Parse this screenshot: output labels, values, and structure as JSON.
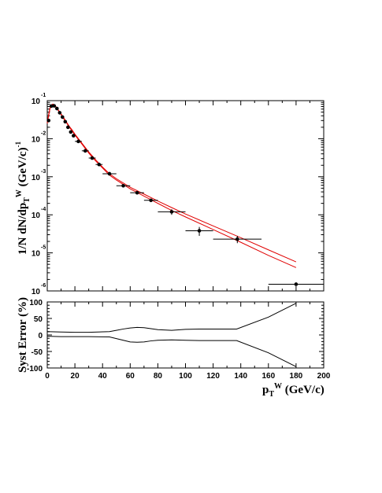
{
  "chart_data": [
    {
      "type": "scatter",
      "panel": "main",
      "title": "",
      "ylabel_main": "1/N dN/dp",
      "ylabel_sub": "T",
      "ylabel_sup": "W",
      "ylabel_tail": " (GeV/c)",
      "ylabel_tail_sup": "-1",
      "xlim": [
        0,
        200
      ],
      "ylim": [
        1e-06,
        0.1
      ],
      "yscale": "log",
      "grid": false,
      "ytick_bases": [
        "10",
        "10",
        "10",
        "10",
        "10",
        "10"
      ],
      "ytick_exponents": [
        "-1",
        "-2",
        "-3",
        "-4",
        "-5",
        "-6"
      ],
      "ytick_values": [
        0.1,
        0.01,
        0.001,
        0.0001,
        1e-05,
        1e-06
      ],
      "series": [
        {
          "color": "#000000",
          "points": [
            {
              "x": 1,
              "y": 0.03,
              "xerr": 1
            },
            {
              "x": 3,
              "y": 0.072,
              "xerr": 1
            },
            {
              "x": 5,
              "y": 0.073,
              "xerr": 1
            },
            {
              "x": 7,
              "y": 0.062,
              "xerr": 1
            },
            {
              "x": 9,
              "y": 0.048,
              "xerr": 1
            },
            {
              "x": 11,
              "y": 0.037,
              "xerr": 1
            },
            {
              "x": 13,
              "y": 0.028,
              "xerr": 1
            },
            {
              "x": 15,
              "y": 0.02,
              "xerr": 1
            },
            {
              "x": 17,
              "y": 0.015,
              "xerr": 1
            },
            {
              "x": 19,
              "y": 0.012,
              "xerr": 1
            },
            {
              "x": 22.5,
              "y": 0.0085,
              "xerr": 2.5
            },
            {
              "x": 27.5,
              "y": 0.0048,
              "xerr": 2.5
            },
            {
              "x": 32.5,
              "y": 0.0031,
              "xerr": 2.5
            },
            {
              "x": 37.5,
              "y": 0.0021,
              "xerr": 2.5
            },
            {
              "x": 45,
              "y": 0.0012,
              "xerr": 5
            },
            {
              "x": 55,
              "y": 0.00058,
              "xerr": 5
            },
            {
              "x": 65,
              "y": 0.00038,
              "xerr": 5
            },
            {
              "x": 75,
              "y": 0.00024,
              "xerr": 5
            },
            {
              "x": 90,
              "y": 0.00012,
              "xerr": 10,
              "yerr_low": 2e-05,
              "yerr_high": 2e-05
            },
            {
              "x": 110,
              "y": 3.8e-05,
              "xerr": 10,
              "yerr_low": 1e-05,
              "yerr_high": 1e-05
            },
            {
              "x": 137.5,
              "y": 2.3e-05,
              "xerr": 17.5,
              "yerr_low": 5e-06,
              "yerr_high": 5e-06
            },
            {
              "x": 180,
              "y": 1.5e-06,
              "xerr": 20
            }
          ]
        }
      ],
      "fit_curves": [
        {
          "color": "#e00000",
          "points": [
            [
              0,
              0.025
            ],
            [
              1,
              0.04
            ],
            [
              2,
              0.062
            ],
            [
              3,
              0.074
            ],
            [
              4,
              0.079
            ],
            [
              5,
              0.077
            ],
            [
              6,
              0.07
            ],
            [
              8,
              0.055
            ],
            [
              10,
              0.043
            ],
            [
              12,
              0.033
            ],
            [
              14,
              0.026
            ],
            [
              16,
              0.02
            ],
            [
              18,
              0.016
            ],
            [
              20,
              0.0125
            ],
            [
              25,
              0.0073
            ],
            [
              30,
              0.0042
            ],
            [
              35,
              0.0026
            ],
            [
              40,
              0.0017
            ],
            [
              45,
              0.0011
            ],
            [
              50,
              0.00082
            ],
            [
              60,
              0.00048
            ],
            [
              70,
              0.00031
            ],
            [
              80,
              0.0002
            ],
            [
              90,
              0.00013
            ],
            [
              100,
              8.8e-05
            ],
            [
              120,
              4.1e-05
            ],
            [
              140,
              1.9e-05
            ],
            [
              160,
              8.6e-06
            ],
            [
              180,
              4.1e-06
            ]
          ]
        },
        {
          "color": "#e00000",
          "points": [
            [
              0,
              0.027
            ],
            [
              1,
              0.043
            ],
            [
              2,
              0.065
            ],
            [
              3,
              0.077
            ],
            [
              4,
              0.081
            ],
            [
              5,
              0.079
            ],
            [
              6,
              0.072
            ],
            [
              8,
              0.057
            ],
            [
              10,
              0.045
            ],
            [
              12,
              0.035
            ],
            [
              14,
              0.027
            ],
            [
              16,
              0.021
            ],
            [
              18,
              0.017
            ],
            [
              20,
              0.0132
            ],
            [
              25,
              0.0077
            ],
            [
              30,
              0.0045
            ],
            [
              35,
              0.0028
            ],
            [
              40,
              0.0018
            ],
            [
              45,
              0.0012
            ],
            [
              50,
              0.00089
            ],
            [
              60,
              0.00053
            ],
            [
              70,
              0.00035
            ],
            [
              80,
              0.00023
            ],
            [
              90,
              0.000155
            ],
            [
              100,
              0.000105
            ],
            [
              120,
              5.1e-05
            ],
            [
              140,
              2.5e-05
            ],
            [
              160,
              1.2e-05
            ],
            [
              180,
              5.8e-06
            ]
          ]
        }
      ]
    },
    {
      "type": "line",
      "panel": "ratio",
      "ylabel": "Syst Error (%)",
      "xlabel_main": "p",
      "xlabel_sub": "T",
      "xlabel_sup": "W",
      "xlabel_tail": " (GeV/c)",
      "xlim": [
        0,
        200
      ],
      "ylim": [
        -100,
        100
      ],
      "grid": false,
      "xtick_labels": [
        "0",
        "20",
        "40",
        "60",
        "80",
        "100",
        "120",
        "140",
        "160",
        "180",
        "200"
      ],
      "ytick_labels": [
        "100",
        "50",
        "0",
        "-50",
        "-100"
      ],
      "series": [
        {
          "color": "#000000",
          "points": [
            [
              0,
              10
            ],
            [
              10,
              9
            ],
            [
              20,
              8
            ],
            [
              30,
              8
            ],
            [
              45,
              10
            ],
            [
              50,
              14
            ],
            [
              55,
              18
            ],
            [
              60,
              21
            ],
            [
              65,
              23
            ],
            [
              70,
              22
            ],
            [
              75,
              19
            ],
            [
              80,
              16
            ],
            [
              90,
              14
            ],
            [
              100,
              17
            ],
            [
              110,
              18
            ],
            [
              120,
              18
            ],
            [
              137,
              18
            ],
            [
              160,
              54
            ],
            [
              180,
              96
            ]
          ]
        },
        {
          "color": "#000000",
          "points": [
            [
              0,
              -4
            ],
            [
              10,
              -5
            ],
            [
              20,
              -5
            ],
            [
              30,
              -5
            ],
            [
              45,
              -6
            ],
            [
              50,
              -11
            ],
            [
              55,
              -16
            ],
            [
              60,
              -21
            ],
            [
              65,
              -22
            ],
            [
              70,
              -21
            ],
            [
              75,
              -18
            ],
            [
              80,
              -16
            ],
            [
              90,
              -15
            ],
            [
              100,
              -16
            ],
            [
              110,
              -17
            ],
            [
              120,
              -17
            ],
            [
              137,
              -17
            ],
            [
              160,
              -54
            ],
            [
              180,
              -96
            ]
          ]
        }
      ]
    }
  ]
}
